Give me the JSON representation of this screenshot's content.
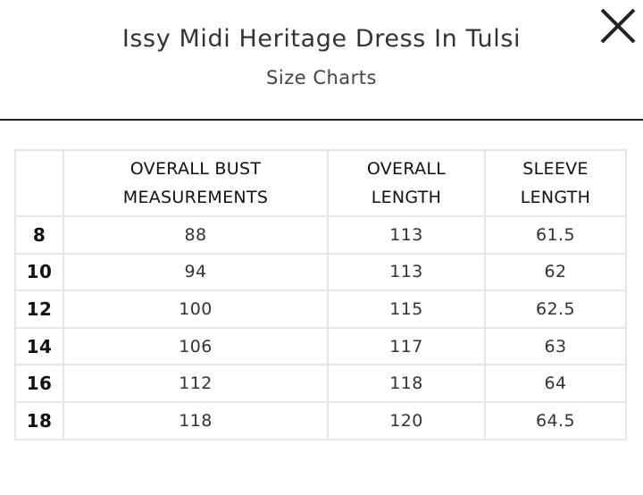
{
  "header": {
    "title": "Issy Midi Heritage Dress In Tulsi",
    "subtitle": "Size Charts",
    "close_icon": "close-icon"
  },
  "table": {
    "columns": [
      "",
      "OVERALL BUST MEASUREMENTS",
      "OVERALL LENGTH",
      "SLEEVE LENGTH"
    ],
    "rows": [
      [
        "8",
        "88",
        "113",
        "61.5"
      ],
      [
        "10",
        "94",
        "113",
        "62"
      ],
      [
        "12",
        "100",
        "115",
        "62.5"
      ],
      [
        "14",
        "106",
        "117",
        "63"
      ],
      [
        "16",
        "112",
        "118",
        "64"
      ],
      [
        "18",
        "118",
        "120",
        "64.5"
      ]
    ]
  }
}
